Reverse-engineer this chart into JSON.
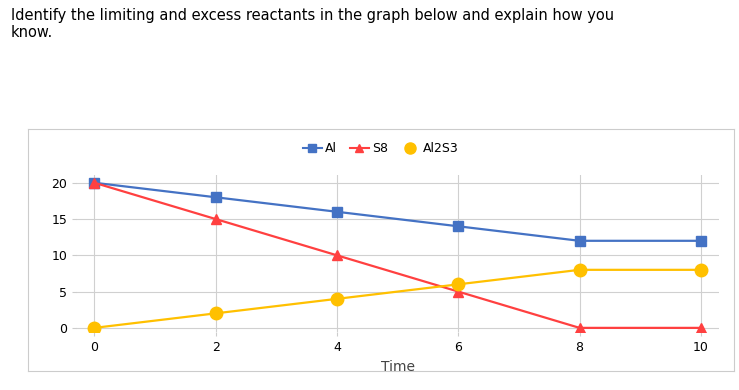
{
  "title_text": "Identify the limiting and excess reactants in the graph below and explain how you\nknow.",
  "xlabel": "Time",
  "x": [
    0,
    2,
    4,
    6,
    8,
    10
  ],
  "Al": [
    20,
    18,
    16,
    14,
    12,
    12
  ],
  "S8": [
    20,
    15,
    10,
    5,
    0,
    0
  ],
  "Al2S3": [
    0,
    2,
    4,
    6,
    8,
    8
  ],
  "Al_color": "#4472c4",
  "S8_color": "#ff4040",
  "Al2S3_color": "#ffc000",
  "Al_marker": "s",
  "S8_marker": "^",
  "Al2S3_marker": "o",
  "Al_marker_size": 7,
  "S8_marker_size": 7,
  "Al2S3_marker_size": 9,
  "ylim": [
    -0.5,
    21
  ],
  "xlim": [
    -0.3,
    10.3
  ],
  "yticks": [
    0,
    5,
    10,
    15,
    20
  ],
  "xticks": [
    0,
    2,
    4,
    6,
    8,
    10
  ],
  "background_color": "#ffffff",
  "grid_color": "#d0d0d0",
  "border_color": "#cccccc",
  "fig_width": 7.39,
  "fig_height": 3.9
}
